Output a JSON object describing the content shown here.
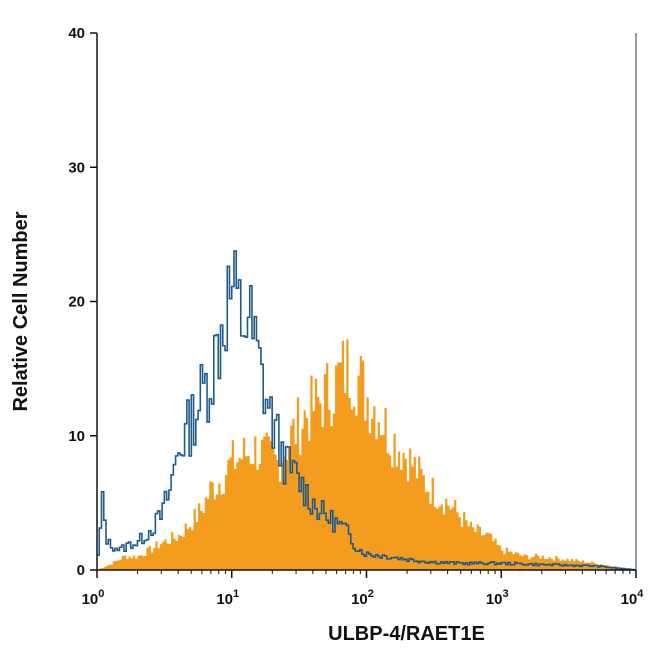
{
  "chart_data": {
    "type": "area",
    "xlabel": "ULBP-4/RAET1E",
    "ylabel": "Relative Cell Number",
    "xscale": "log10",
    "xlim": [
      1,
      10000
    ],
    "ylim": [
      0,
      40
    ],
    "yticks": [
      0,
      10,
      20,
      30,
      40
    ],
    "xticks": [
      {
        "value": 1,
        "base": "10",
        "exp": "0"
      },
      {
        "value": 10,
        "base": "10",
        "exp": "1"
      },
      {
        "value": 100,
        "base": "10",
        "exp": "2"
      },
      {
        "value": 1000,
        "base": "10",
        "exp": "3"
      },
      {
        "value": 10000,
        "base": "10",
        "exp": "4"
      }
    ],
    "grid": false,
    "series": [
      {
        "style": "filled",
        "color": "#f39c1e",
        "x": [
          1,
          1.3,
          1.6,
          2,
          2.5,
          3,
          4,
          5,
          6,
          7,
          8,
          10,
          12,
          15,
          18,
          22,
          26,
          30,
          35,
          40,
          50,
          60,
          70,
          80,
          90,
          100,
          120,
          150,
          200,
          250,
          300,
          400,
          500,
          600,
          800,
          1000,
          1500,
          2000,
          3000,
          5000,
          10000
        ],
        "y": [
          0,
          0.5,
          1,
          1,
          1.5,
          2,
          2.5,
          3.5,
          4.5,
          6,
          6.5,
          8,
          8.5,
          9,
          8.5,
          8,
          9.5,
          10.5,
          11.5,
          12,
          13,
          14,
          15,
          15,
          14,
          13,
          12,
          10,
          8.5,
          7,
          6,
          5,
          4,
          3,
          2.5,
          1.5,
          1,
          1,
          0.8,
          0.5,
          0
        ]
      },
      {
        "style": "outline",
        "color": "#1f5b8a",
        "x": [
          1,
          1.1,
          1.2,
          1.5,
          1.8,
          2,
          2.5,
          3,
          3.5,
          4,
          4.5,
          5,
          6,
          7,
          8,
          9,
          10,
          11,
          12,
          13,
          14,
          15,
          17,
          20,
          25,
          30,
          40,
          50,
          60,
          70,
          80,
          90,
          100,
          150,
          200,
          300,
          500,
          1000,
          2000,
          5000,
          10000
        ],
        "y": [
          0,
          5,
          2,
          1.5,
          2,
          2,
          3,
          4,
          6,
          9,
          10,
          11,
          13,
          14.5,
          17,
          19.5,
          21,
          19.5,
          18.5,
          19,
          18,
          16.5,
          14,
          11,
          8,
          7,
          5,
          4,
          3.5,
          3,
          2,
          1.5,
          1.2,
          1,
          0.8,
          0.6,
          0.5,
          0.5,
          0.4,
          0.3,
          0
        ]
      }
    ]
  }
}
